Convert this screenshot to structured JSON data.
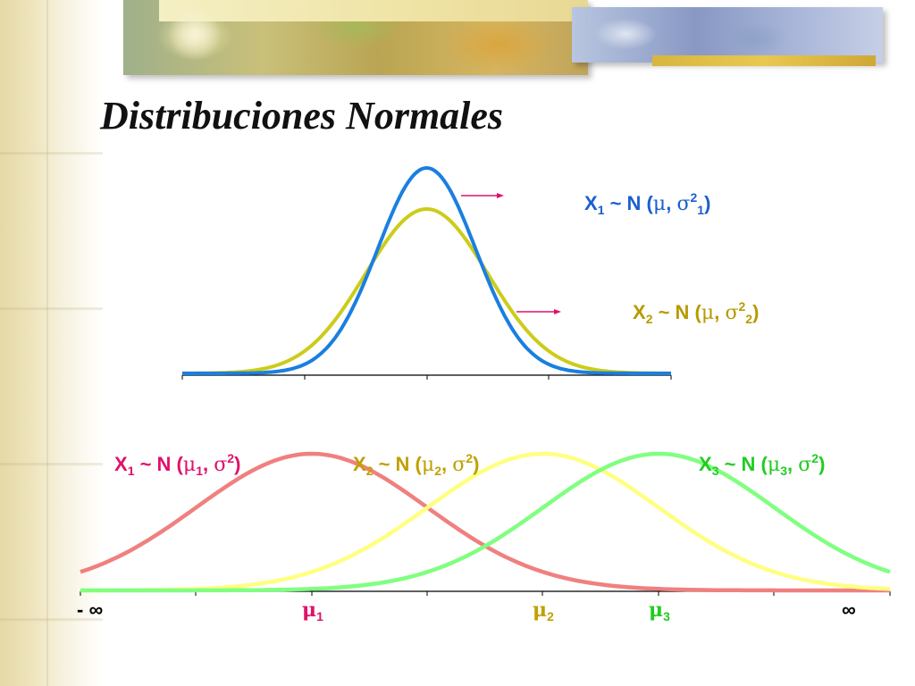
{
  "title": "Distribuciones Normales",
  "colors": {
    "top_curve_1": "#1a7fe0",
    "top_curve_2": "#cccc1a",
    "arrow": "#e0106a",
    "bottom_curve_1": "#f08080",
    "bottom_curve_2": "#ffff80",
    "bottom_curve_3": "#80ff80",
    "label_1": "#e0106a",
    "label_2": "#c0a000",
    "label_3": "#22cc22",
    "top_label_1": "#1a5fd0",
    "top_label_2": "#b89a00",
    "axis": "#000000"
  },
  "top_panel": {
    "curves": [
      {
        "name": "X1",
        "mean": 0,
        "sd": 0.8
      },
      {
        "name": "X2",
        "mean": 0,
        "sd": 1.0
      }
    ],
    "labels": [
      {
        "x": "X",
        "sub_x": "1",
        "mid": " ~ N (",
        "mu": "μ",
        "comma": ", ",
        "sigma": "σ",
        "sup": "2",
        "sub_sigma": "1",
        "close": ")"
      },
      {
        "x": "X",
        "sub_x": "2",
        "mid": " ~ N (",
        "mu": "μ",
        "comma": ", ",
        "sigma": "σ",
        "sup": "2",
        "sub_sigma": "2",
        "close": ")"
      }
    ]
  },
  "bottom_panel": {
    "curves": [
      {
        "name": "X1",
        "mean": 1,
        "sd": 1
      },
      {
        "name": "X2",
        "mean": 3,
        "sd": 1
      },
      {
        "name": "X3",
        "mean": 4,
        "sd": 1
      }
    ],
    "labels": [
      {
        "x": "X",
        "sub_x": "1",
        "mid": " ~ N (",
        "mu": "μ",
        "sub_mu": "1",
        "comma": ", ",
        "sigma": "σ",
        "sup": "2",
        "close": ")"
      },
      {
        "x": "X",
        "sub_x": "2",
        "mid": " ~ N (",
        "mu": "μ",
        "sub_mu": "2",
        "comma": ", ",
        "sigma": "σ",
        "sup": "2",
        "close": ")"
      },
      {
        "x": "X",
        "sub_x": "3",
        "mid": " ~ N (",
        "mu": "μ",
        "sub_mu": "3",
        "comma": ", ",
        "sigma": "σ",
        "sup": "2",
        "close": ")"
      }
    ],
    "axis_labels": {
      "neg_inf": "- ∞",
      "mu1": "μ",
      "mu1_sub": "1",
      "mu2": "μ",
      "mu2_sub": "2",
      "mu3": "μ",
      "mu3_sub": "3",
      "pos_inf": "∞"
    }
  }
}
